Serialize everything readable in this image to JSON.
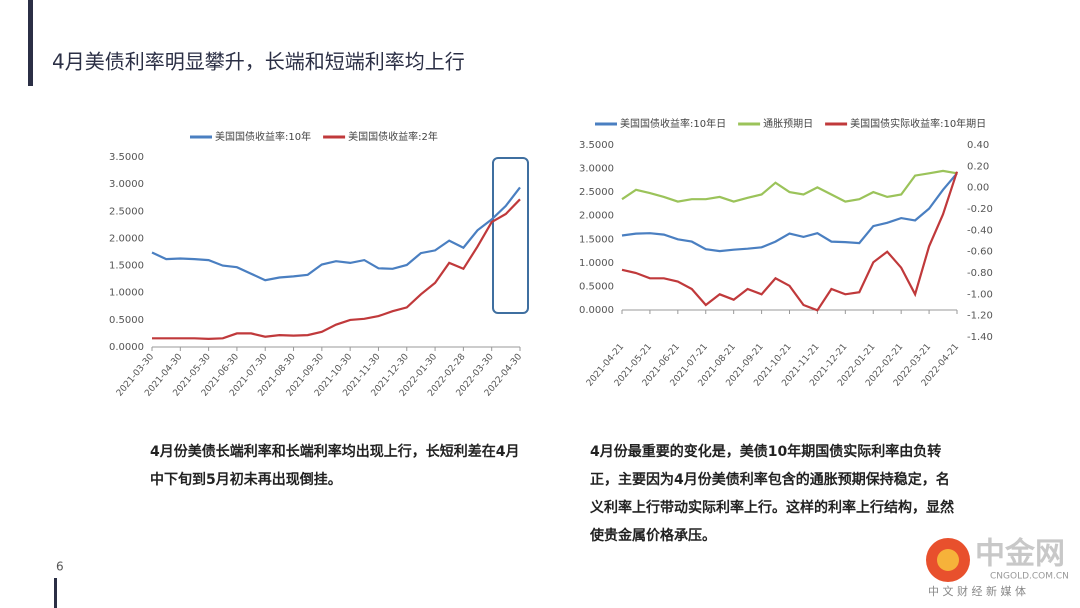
{
  "title": "4月美债利率明显攀升，长端和短端利率均上行",
  "page_number": "6",
  "notes": [
    "4月份美债长端利率和长端利率均出现上行，长短利差在4月中下旬到5月初未再出现倒挂。",
    "4月份最重要的变化是，美债10年期国债实际利率由负转正，主要因为4月份美债利率包含的通胀预期保持稳定，名义利率上行带动实际利率上行。这样的利率上行结构，显然使贵金属价格承压。"
  ],
  "watermark": {
    "name": "中金网",
    "site": "CNGOLD.COM.CN",
    "tagline": "中 文 财 经 新 媒 体"
  },
  "chart_data": [
    {
      "type": "line",
      "categories": [
        "2021-03-30",
        null,
        "2021-04-30",
        null,
        "2021-05-30",
        null,
        "2021-06-30",
        null,
        "2021-07-30",
        null,
        "2021-08-30",
        null,
        "2021-09-30",
        null,
        "2021-10-30",
        null,
        "2021-11-30",
        null,
        "2021-12-30",
        null,
        "2022-01-30",
        null,
        "2022-02-28",
        null,
        "2022-03-30",
        null,
        "2022-04-30"
      ],
      "series": [
        {
          "name": "美国国债收益率:10年",
          "color": "#4a7fc1",
          "values": [
            1.74,
            1.62,
            1.63,
            1.62,
            1.6,
            1.5,
            1.47,
            1.35,
            1.23,
            1.28,
            1.3,
            1.33,
            1.52,
            1.58,
            1.55,
            1.6,
            1.45,
            1.44,
            1.51,
            1.73,
            1.78,
            1.96,
            1.83,
            2.15,
            2.35,
            2.6,
            2.94
          ]
        },
        {
          "name": "美国国债收益率:2年",
          "color": "#c0393b",
          "values": [
            0.16,
            0.16,
            0.16,
            0.16,
            0.15,
            0.16,
            0.25,
            0.25,
            0.19,
            0.22,
            0.21,
            0.22,
            0.28,
            0.41,
            0.5,
            0.52,
            0.57,
            0.66,
            0.73,
            0.97,
            1.18,
            1.55,
            1.44,
            1.85,
            2.3,
            2.45,
            2.72
          ]
        }
      ],
      "ylim": [
        0,
        3.5
      ],
      "yticks": [
        {
          "value": 0,
          "label": "0.0000"
        },
        {
          "value": 0.5,
          "label": "0.5000"
        },
        {
          "value": 1,
          "label": "1.0000"
        },
        {
          "value": 1.5,
          "label": "1.5000"
        },
        {
          "value": 2,
          "label": "2.0000"
        },
        {
          "value": 2.5,
          "label": "2.5000"
        },
        {
          "value": 3,
          "label": "3.0000"
        },
        {
          "value": 3.5,
          "label": "3.5000"
        }
      ]
    },
    {
      "type": "line",
      "categories": [
        "2021-04-21",
        null,
        "2021-05-21",
        null,
        "2021-06-21",
        null,
        "2021-07-21",
        null,
        "2021-08-21",
        null,
        "2021-09-21",
        null,
        "2021-10-21",
        null,
        "2021-11-21",
        null,
        "2021-12-21",
        null,
        "2022-01-21",
        null,
        "2022-02-21",
        null,
        "2022-03-21",
        null,
        "2022-04-21"
      ],
      "series": [
        {
          "name": "美国国债收益率:10年日",
          "color": "#4a7fc1",
          "values": [
            1.58,
            1.62,
            1.63,
            1.6,
            1.5,
            1.45,
            1.29,
            1.25,
            1.28,
            1.3,
            1.33,
            1.45,
            1.62,
            1.55,
            1.63,
            1.45,
            1.44,
            1.42,
            1.78,
            1.85,
            1.95,
            1.9,
            2.15,
            2.55,
            2.9
          ]
        },
        {
          "name": "通胀预期日",
          "color": "#9bc35a",
          "values": [
            2.35,
            2.55,
            2.48,
            2.4,
            2.3,
            2.35,
            2.35,
            2.4,
            2.3,
            2.38,
            2.45,
            2.7,
            2.5,
            2.45,
            2.6,
            2.45,
            2.3,
            2.35,
            2.5,
            2.4,
            2.45,
            2.85,
            2.9,
            2.95,
            2.9
          ]
        },
        {
          "name": "美国国债实际收益率:10年期日",
          "color": "#c0393b",
          "axis": "y2",
          "values": [
            -0.77,
            -0.8,
            -0.85,
            -0.85,
            -0.88,
            -0.95,
            -1.1,
            -1.0,
            -1.05,
            -0.95,
            -1.0,
            -0.85,
            -0.92,
            -1.1,
            -1.15,
            -0.95,
            -1.0,
            -0.98,
            -0.7,
            -0.6,
            -0.75,
            -1.0,
            -0.55,
            -0.25,
            0.15
          ]
        }
      ],
      "ylim": [
        0,
        3.5
      ],
      "yticks": [
        {
          "value": 0,
          "label": "0.0000"
        },
        {
          "value": 0.5,
          "label": "0.5000"
        },
        {
          "value": 1,
          "label": "1.0000"
        },
        {
          "value": 1.5,
          "label": "1.5000"
        },
        {
          "value": 2,
          "label": "2.0000"
        },
        {
          "value": 2.5,
          "label": "2.5000"
        },
        {
          "value": 3,
          "label": "3.0000"
        },
        {
          "value": 3.5,
          "label": "3.5000"
        }
      ],
      "y2lim": [
        -1.4,
        0.4
      ],
      "y2ticks": [
        {
          "value": -1.4,
          "label": "-1.40"
        },
        {
          "value": -1.2,
          "label": "-1.20"
        },
        {
          "value": -1,
          "label": "-1.00"
        },
        {
          "value": -0.8,
          "label": "-0.80"
        },
        {
          "value": -0.6,
          "label": "-0.60"
        },
        {
          "value": -0.4,
          "label": "-0.40"
        },
        {
          "value": -0.2,
          "label": "-0.20"
        },
        {
          "value": 0,
          "label": "0.00"
        },
        {
          "value": 0.2,
          "label": "0.20"
        },
        {
          "value": 0.4,
          "label": "0.40"
        }
      ]
    }
  ]
}
